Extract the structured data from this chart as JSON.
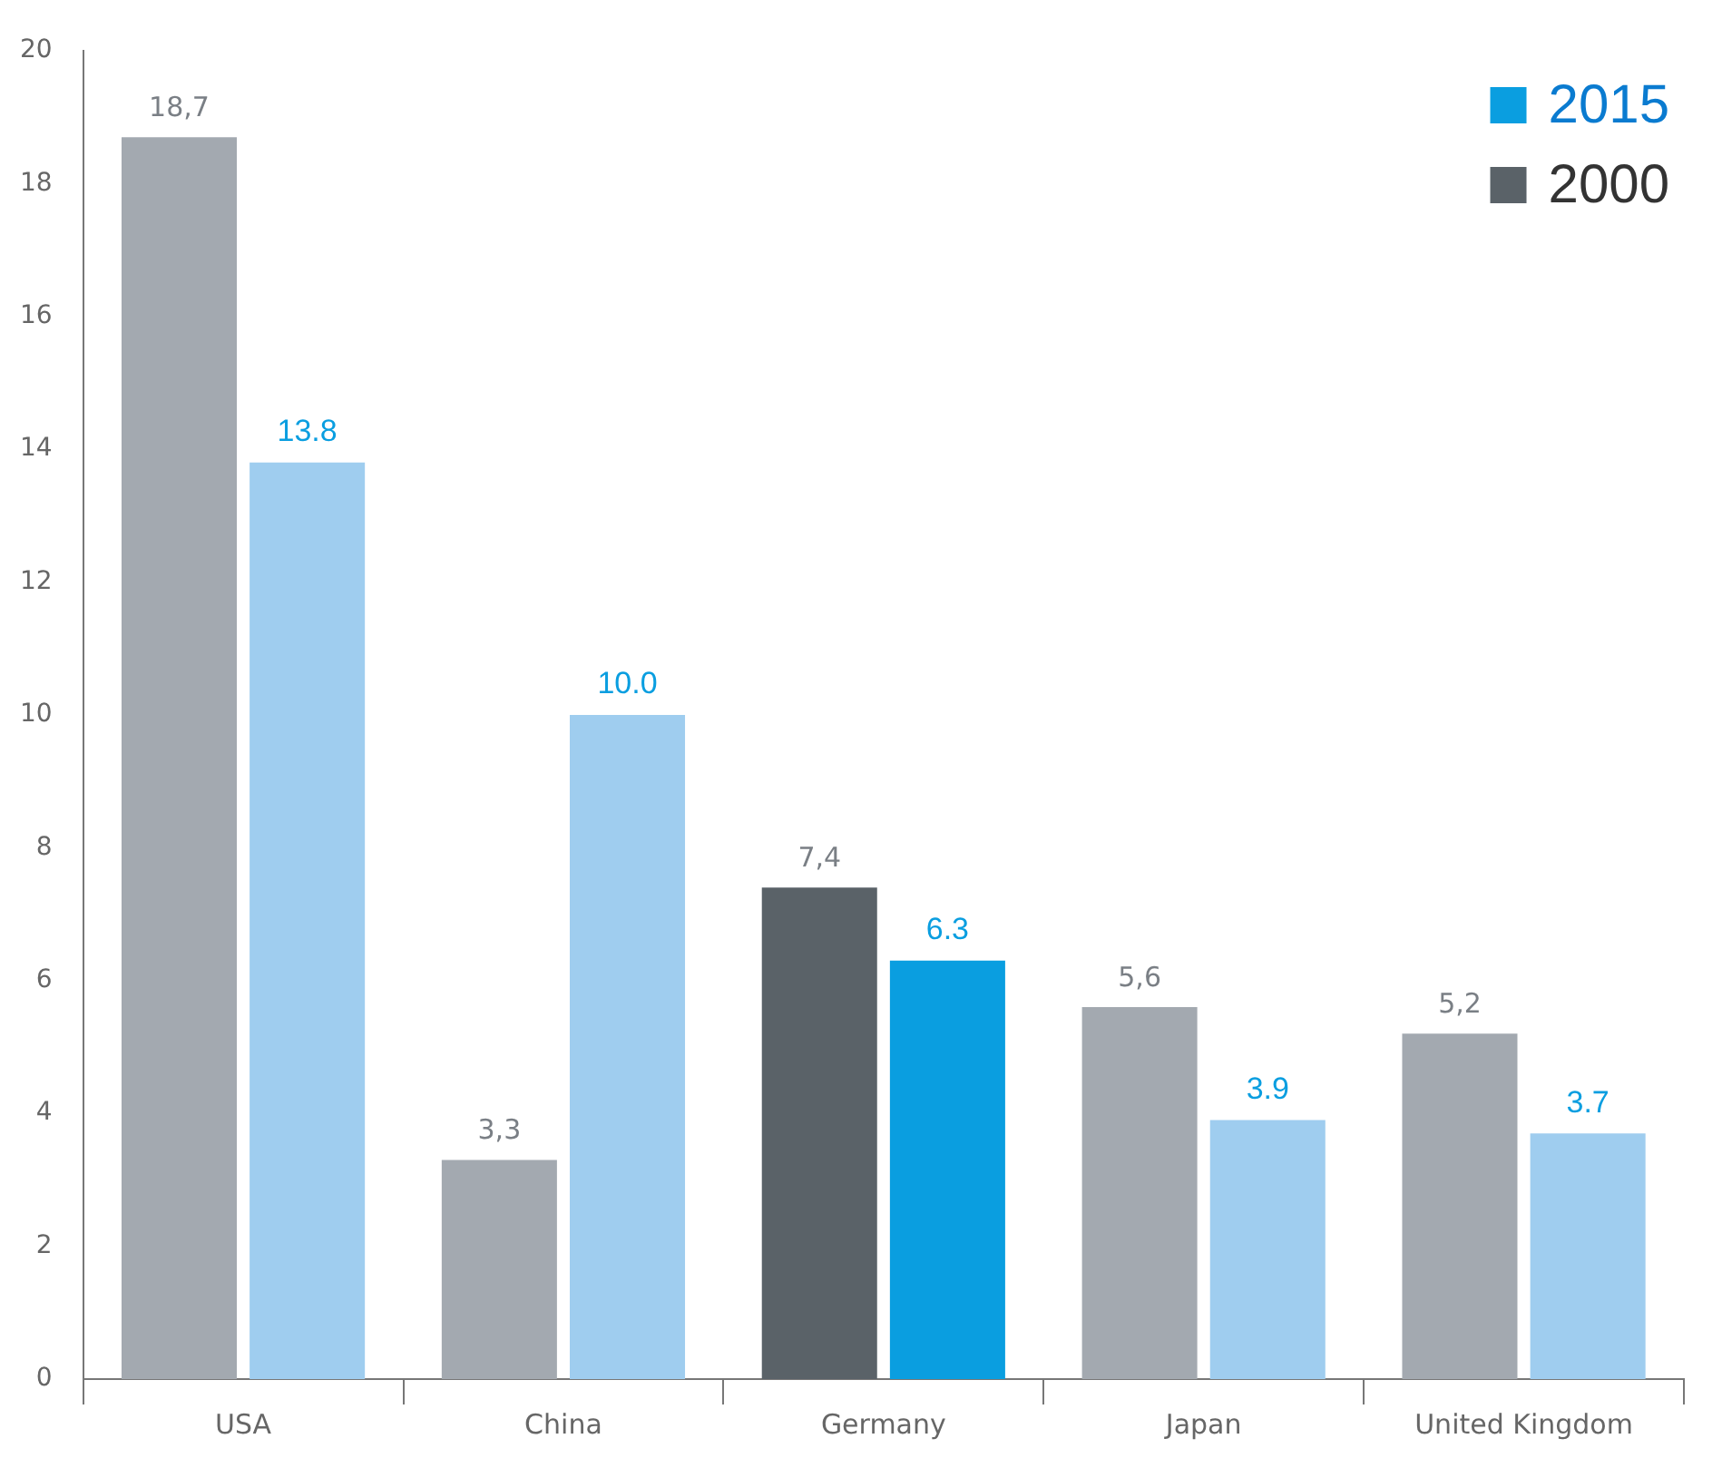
{
  "chart_data": {
    "type": "bar",
    "categories": [
      "USA",
      "China",
      "Germany",
      "Japan",
      "United Kingdom"
    ],
    "series": [
      {
        "name": "2000",
        "color": "#5a6268",
        "colors": [
          "#a3a9b0",
          "#a3a9b0",
          "#5a6268",
          "#a3a9b0",
          "#a3a9b0"
        ],
        "values": [
          18.7,
          3.3,
          7.4,
          5.6,
          5.2
        ],
        "value_labels": [
          "18,7",
          "3,3",
          "7,4",
          "5,6",
          "5,2"
        ]
      },
      {
        "name": "2015",
        "color": "#0a9ee0",
        "colors": [
          "#9fcdef",
          "#9fcdef",
          "#0a9ee0",
          "#9fcdef",
          "#9fcdef"
        ],
        "values": [
          13.8,
          10.0,
          6.3,
          3.9,
          3.7
        ],
        "value_labels": [
          "13.8",
          "10.0",
          "6.3",
          "3.9",
          "3.7"
        ]
      }
    ],
    "ylim": [
      0,
      20
    ],
    "yticks": [
      0,
      2,
      4,
      6,
      8,
      10,
      12,
      14,
      16,
      18,
      20
    ],
    "legend": "top right"
  }
}
